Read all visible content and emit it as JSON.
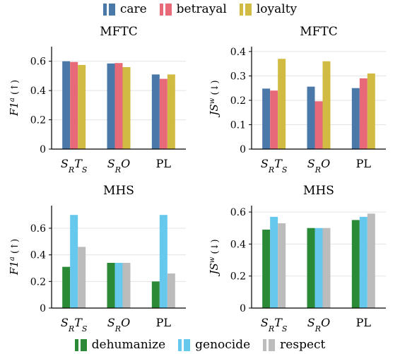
{
  "legend_top": [
    {
      "label": "care",
      "color": "#4a78a8"
    },
    {
      "label": "betrayal",
      "color": "#e86a78"
    },
    {
      "label": "loyalty",
      "color": "#d2bb42"
    }
  ],
  "legend_bottom": [
    {
      "label": "dehumanize",
      "color": "#2b8a35"
    },
    {
      "label": "genocide",
      "color": "#66c8ec"
    },
    {
      "label": "respect",
      "color": "#bcbcbc"
    }
  ],
  "chart_data": [
    {
      "type": "bar",
      "title": "MFTC",
      "ylabel": "F1a (↑)",
      "categories": [
        "SRTS",
        "SRO",
        "PL"
      ],
      "ylim": [
        0,
        0.7
      ],
      "yticks": [
        "0",
        "0.2",
        "0.4",
        "0.6"
      ],
      "grid": "horizontal",
      "series": [
        {
          "name": "care",
          "values": [
            0.6,
            0.585,
            0.51
          ]
        },
        {
          "name": "betrayal",
          "values": [
            0.595,
            0.588,
            0.48
          ]
        },
        {
          "name": "loyalty",
          "values": [
            0.575,
            0.56,
            0.51
          ]
        }
      ]
    },
    {
      "type": "bar",
      "title": "MFTC",
      "ylabel": "JSw (↓)",
      "categories": [
        "SRTS",
        "SRO",
        "PL"
      ],
      "ylim": [
        0,
        0.42
      ],
      "yticks": [
        "0",
        "0.1",
        "0.2",
        "0.3",
        "0.4"
      ],
      "grid": "horizontal",
      "series": [
        {
          "name": "care",
          "values": [
            0.248,
            0.256,
            0.25
          ]
        },
        {
          "name": "betrayal",
          "values": [
            0.24,
            0.196,
            0.29
          ]
        },
        {
          "name": "loyalty",
          "values": [
            0.37,
            0.36,
            0.31
          ]
        }
      ]
    },
    {
      "type": "bar",
      "title": "MHS",
      "ylabel": "F1a (↑)",
      "categories": [
        "SRTS",
        "SRO",
        "PL"
      ],
      "ylim": [
        0,
        0.77
      ],
      "yticks": [
        "0",
        "0.2",
        "0.4",
        "0.6"
      ],
      "grid": "horizontal",
      "series": [
        {
          "name": "dehumanize",
          "values": [
            0.31,
            0.34,
            0.2
          ]
        },
        {
          "name": "genocide",
          "values": [
            0.7,
            0.34,
            0.7
          ]
        },
        {
          "name": "respect",
          "values": [
            0.46,
            0.34,
            0.26
          ]
        }
      ]
    },
    {
      "type": "bar",
      "title": "MHS",
      "ylabel": "JSw (↓)",
      "categories": [
        "SRTS",
        "SRO",
        "PL"
      ],
      "ylim": [
        0,
        0.64
      ],
      "yticks": [
        "0",
        "0.2",
        "0.4",
        "0.6"
      ],
      "grid": "horizontal",
      "series": [
        {
          "name": "dehumanize",
          "values": [
            0.49,
            0.5,
            0.55
          ]
        },
        {
          "name": "genocide",
          "values": [
            0.57,
            0.5,
            0.57
          ]
        },
        {
          "name": "respect",
          "values": [
            0.53,
            0.5,
            0.59
          ]
        }
      ]
    }
  ]
}
